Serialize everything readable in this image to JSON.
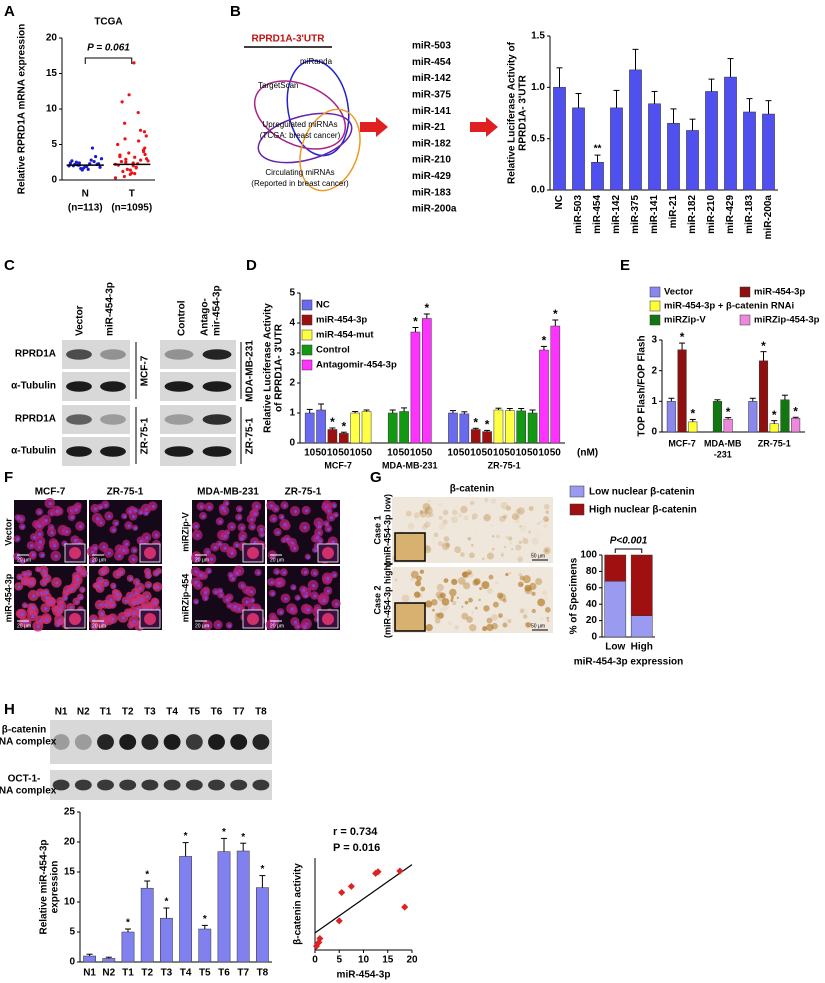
{
  "figure": {
    "panel_labels": [
      "A",
      "B",
      "C",
      "D",
      "E",
      "F",
      "G",
      "H"
    ],
    "venn": {
      "title": "RPRD1A-3'UTR",
      "sets": [
        "miRanda",
        "TargetScan"
      ],
      "upregulated": [
        "Upregulated miRNAs",
        "(TCGA: breast cancer)"
      ],
      "circulating": [
        "Circulating miRNAs",
        "(Reported in breast cancer)"
      ],
      "mirnas": [
        "miR-503",
        "miR-454",
        "miR-142",
        "miR-375",
        "miR-141",
        "miR-21",
        "miR-182",
        "miR-210",
        "miR-429",
        "miR-183",
        "miR-200a"
      ]
    },
    "blots_c": {
      "lanes_left": [
        "Vector",
        "miR-454-3p"
      ],
      "lanes_right": [
        "Control",
        "Antago-",
        "mir-454-3p"
      ],
      "rows": [
        "RPRD1A",
        "α-Tubulin",
        "RPRD1A",
        "α-Tubulin"
      ],
      "cell_lines": [
        "MCF-7",
        "MDA-MB-231",
        "ZR-75-1",
        "ZR-75-1"
      ]
    },
    "panel_f": {
      "columns": [
        "MCF-7",
        "ZR-75-1",
        "MDA-MB-231",
        "ZR-75-1"
      ],
      "rows_left": [
        "Vector",
        "miR-454-3p"
      ],
      "rows_right": [
        "miRZip-V",
        "miRZip-454"
      ],
      "scale_bar": "20 μm"
    },
    "panel_g": {
      "title": "β-catenin",
      "cases": [
        [
          "Case 1",
          "(miR-454-3p low)"
        ],
        [
          "Case 2",
          "(miR-454-3p high)"
        ]
      ],
      "scale_bar": "50 μm"
    },
    "panel_h_blot": {
      "lanes": [
        "N1",
        "N2",
        "T1",
        "T2",
        "T3",
        "T4",
        "T5",
        "T6",
        "T7",
        "T8"
      ],
      "rows": [
        [
          "β-catenin",
          "DNA complex"
        ],
        [
          "OCT-1-",
          "DNA complex"
        ]
      ]
    }
  },
  "chart_data": [
    {
      "type": "strip",
      "title": "TCGA",
      "categories": [
        "N",
        "T"
      ],
      "category_notes": [
        "(n=113)",
        "(n=1095)"
      ],
      "points": [
        [
          2.0,
          2.1,
          2.3,
          1.8,
          2.5,
          1.9,
          2.2,
          2.0,
          1.7,
          2.6,
          2.4,
          1.6,
          2.8,
          3.0,
          2.1,
          1.5,
          2.3,
          2.2,
          1.9,
          3.3,
          2.7,
          1.4,
          4.5,
          2.0,
          2.4
        ],
        [
          2.2,
          2.5,
          1.8,
          3.0,
          1.2,
          2.0,
          4.0,
          3.5,
          0.8,
          2.8,
          5.0,
          1.5,
          2.3,
          6.2,
          0.5,
          3.2,
          4.5,
          2.6,
          1.0,
          7.0,
          2.1,
          3.8,
          5.5,
          0.3,
          2.9,
          1.7,
          6.8,
          8.0,
          2.4,
          4.2,
          3.3,
          1.4,
          9.5,
          11.0,
          12.0,
          16.5,
          2.7,
          5.8,
          0.9,
          3.6
        ]
      ],
      "medians": [
        2.1,
        2.2
      ],
      "colors": [
        "#1a1acc",
        "#ee1111"
      ],
      "annotation": "P = 0.061",
      "ylabel": [
        "Relative RPRD1A mRNA expression"
      ],
      "ylim": [
        0,
        20
      ],
      "yticks": [
        0,
        5,
        10,
        15,
        20
      ]
    },
    {
      "type": "bar",
      "categories": [
        "NC",
        "miR-503",
        "miR-454",
        "miR-142",
        "miR-375",
        "miR-141",
        "miR-21",
        "miR-182",
        "miR-210",
        "miR-429",
        "miR-183",
        "miR-200a"
      ],
      "values": [
        1.0,
        0.8,
        0.27,
        0.8,
        1.17,
        0.84,
        0.65,
        0.58,
        0.96,
        1.1,
        0.76,
        0.74
      ],
      "errors": [
        0.19,
        0.14,
        0.07,
        0.17,
        0.2,
        0.12,
        0.14,
        0.11,
        0.12,
        0.18,
        0.13,
        0.13
      ],
      "annotations": [
        null,
        null,
        "**",
        null,
        null,
        null,
        null,
        null,
        null,
        null,
        null,
        null
      ],
      "color": "#5050ee",
      "ylabel": [
        "Relative Luciferase Activity of",
        "RPRD1A- 3'UTR"
      ],
      "ylim": [
        0,
        1.5
      ],
      "yticks": [
        {
          "value": 0,
          "label": "0.0"
        },
        0.5,
        {
          "value": 1,
          "label": "1.0"
        },
        1.5
      ]
    },
    {
      "type": "grouped_bar",
      "categories": [
        "10",
        "50",
        "10",
        "50",
        "10",
        "50",
        "10",
        "50",
        "10",
        "50",
        "10",
        "50",
        "10",
        "50",
        "10",
        "50",
        "10",
        "50",
        "10",
        "50"
      ],
      "groups": [
        [
          "MCF-7"
        ],
        [
          "MDA-MB-231"
        ],
        [
          "ZR-75-1"
        ]
      ],
      "group_sizes": [
        6,
        4,
        10
      ],
      "unit": "(nM)",
      "series": [
        {
          "name": "NC",
          "color": "#6a6aee",
          "values": [
            1.0,
            1.1,
            null,
            null,
            null,
            null,
            null,
            null,
            null,
            null,
            1.0,
            0.97,
            null,
            null,
            null,
            null,
            null,
            null,
            null,
            null
          ],
          "errors": [
            0.12,
            0.2,
            null,
            null,
            null,
            null,
            null,
            null,
            null,
            null,
            0.08,
            0.07,
            null,
            null,
            null,
            null,
            null,
            null,
            null,
            null
          ],
          "significance": [
            null,
            null,
            null,
            null,
            null,
            null,
            null,
            null,
            null,
            null,
            null,
            null,
            null,
            null,
            null,
            null,
            null,
            null,
            null,
            null
          ]
        },
        {
          "name": "miR-454-3p",
          "color": "#9c1010",
          "values": [
            null,
            null,
            0.45,
            0.32,
            null,
            null,
            null,
            null,
            null,
            null,
            null,
            null,
            0.45,
            0.38,
            null,
            null,
            null,
            null,
            null,
            null
          ],
          "errors": [
            null,
            null,
            0.05,
            0.04,
            null,
            null,
            null,
            null,
            null,
            null,
            null,
            null,
            0.04,
            0.04,
            null,
            null,
            null,
            null,
            null,
            null
          ],
          "significance": [
            null,
            null,
            "*",
            "*",
            null,
            null,
            null,
            null,
            null,
            null,
            null,
            null,
            "*",
            "*",
            null,
            null,
            null,
            null,
            null,
            null
          ]
        },
        {
          "name": "miR-454-mut",
          "color": "#ffff44",
          "values": [
            null,
            null,
            null,
            null,
            1.0,
            1.05,
            null,
            null,
            null,
            null,
            null,
            null,
            null,
            null,
            1.1,
            1.08,
            null,
            null,
            null,
            null
          ],
          "errors": [
            null,
            null,
            null,
            null,
            0.05,
            0.05,
            null,
            null,
            null,
            null,
            null,
            null,
            null,
            null,
            0.06,
            0.07,
            null,
            null,
            null,
            null
          ],
          "significance": [
            null,
            null,
            null,
            null,
            null,
            null,
            null,
            null,
            null,
            null,
            null,
            null,
            null,
            null,
            null,
            null,
            null,
            null,
            null,
            null
          ]
        },
        {
          "name": "Control",
          "color": "#119911",
          "values": [
            null,
            null,
            null,
            null,
            null,
            null,
            1.0,
            1.05,
            null,
            null,
            null,
            null,
            null,
            null,
            null,
            null,
            1.07,
            1.0,
            null,
            null
          ],
          "errors": [
            null,
            null,
            null,
            null,
            null,
            null,
            0.1,
            0.12,
            null,
            null,
            null,
            null,
            null,
            null,
            null,
            null,
            0.08,
            0.1,
            null,
            null
          ],
          "significance": [
            null,
            null,
            null,
            null,
            null,
            null,
            null,
            null,
            null,
            null,
            null,
            null,
            null,
            null,
            null,
            null,
            null,
            null,
            null,
            null
          ]
        },
        {
          "name": "Antagomir-454-3p",
          "color": "#ff33ff",
          "values": [
            null,
            null,
            null,
            null,
            null,
            null,
            null,
            null,
            3.7,
            4.15,
            null,
            null,
            null,
            null,
            null,
            null,
            null,
            null,
            3.1,
            3.9
          ],
          "errors": [
            null,
            null,
            null,
            null,
            null,
            null,
            null,
            null,
            0.15,
            0.15,
            null,
            null,
            null,
            null,
            null,
            null,
            null,
            null,
            0.12,
            0.2
          ],
          "significance": [
            null,
            null,
            null,
            null,
            null,
            null,
            null,
            null,
            "*",
            "*",
            null,
            null,
            null,
            null,
            null,
            null,
            null,
            null,
            "*",
            "*"
          ]
        }
      ],
      "ylabel": [
        "Relative Luciferase Activity",
        "of RPRD1A- 3'UTR"
      ],
      "ylim": [
        0,
        5
      ],
      "yticks": [
        0,
        1,
        2,
        3,
        4,
        5
      ]
    },
    {
      "type": "grouped_bar",
      "groups": [
        [
          "MCF-7"
        ],
        [
          "MDA-MB",
          "-231"
        ],
        [
          "ZR-75-1"
        ]
      ],
      "group_sizes": [
        3,
        2,
        5
      ],
      "series": [
        {
          "name": "Vector",
          "color": "#8888ee",
          "values": [
            1.0,
            null,
            null,
            null,
            null,
            1.0,
            null,
            null,
            null,
            null
          ],
          "errors": [
            0.1,
            null,
            null,
            null,
            null,
            0.1,
            null,
            null,
            null,
            null
          ],
          "significance": [
            null,
            null,
            null,
            null,
            null,
            null,
            null,
            null,
            null,
            null
          ]
        },
        {
          "name": "miR-454-3p",
          "color": "#8e1010",
          "values": [
            null,
            2.68,
            null,
            null,
            null,
            null,
            2.32,
            null,
            null,
            null
          ],
          "errors": [
            null,
            0.22,
            null,
            null,
            null,
            null,
            0.3,
            null,
            null,
            null
          ],
          "significance": [
            null,
            "*",
            null,
            null,
            null,
            null,
            "*",
            null,
            null,
            null
          ]
        },
        {
          "name": "miR-454-3p + β-catenin RNAi",
          "color": "#ffff33",
          "values": [
            null,
            null,
            0.33,
            null,
            null,
            null,
            null,
            0.27,
            null,
            null
          ],
          "errors": [
            null,
            null,
            0.08,
            null,
            null,
            null,
            null,
            0.1,
            null,
            null
          ],
          "significance": [
            null,
            null,
            "*",
            null,
            null,
            null,
            null,
            "*",
            null,
            null
          ]
        },
        {
          "name": "miRZip-V",
          "color": "#117711",
          "values": [
            null,
            null,
            null,
            1.0,
            null,
            null,
            null,
            null,
            1.05,
            null
          ],
          "errors": [
            null,
            null,
            null,
            0.05,
            null,
            null,
            null,
            null,
            0.15,
            null
          ],
          "significance": [
            null,
            null,
            null,
            null,
            null,
            null,
            null,
            null,
            null,
            null
          ]
        },
        {
          "name": "miRZip-454-3p",
          "color": "#ee88dd",
          "values": [
            null,
            null,
            null,
            null,
            0.42,
            null,
            null,
            null,
            null,
            0.45
          ],
          "errors": [
            null,
            null,
            null,
            null,
            0.05,
            null,
            null,
            null,
            null,
            0.03
          ],
          "significance": [
            null,
            null,
            null,
            null,
            "*",
            null,
            null,
            null,
            null,
            "*"
          ]
        }
      ],
      "ylabel": [
        "TOP Flash/FOP Flash"
      ],
      "ylim": [
        0,
        3
      ],
      "yticks": [
        0,
        1,
        2,
        3
      ]
    },
    {
      "type": "stacked_bar",
      "categories": [
        "Low",
        "High"
      ],
      "series": [
        {
          "name": "Low nuclear β-catenin",
          "color": "#9a9af0",
          "values": [
            68,
            26
          ]
        },
        {
          "name": "High nuclear β-catenin",
          "color": "#a01010",
          "values": [
            32,
            74
          ]
        }
      ],
      "annotation": "P<0.001",
      "xlabel": "miR-454-3p expression",
      "ylabel": [
        "% of Specimens"
      ],
      "ylim": [
        0,
        100
      ],
      "yticks": [
        0,
        20,
        40,
        60,
        80,
        100
      ]
    },
    {
      "type": "bar",
      "categories": [
        "N1",
        "N2",
        "T1",
        "T2",
        "T3",
        "T4",
        "T5",
        "T6",
        "T7",
        "T8"
      ],
      "values": [
        1.0,
        0.6,
        5.0,
        12.3,
        7.3,
        17.6,
        5.5,
        18.4,
        18.5,
        12.4
      ],
      "errors": [
        0.3,
        0.2,
        0.5,
        1.2,
        1.7,
        2.3,
        0.6,
        2.2,
        1.3,
        2.0
      ],
      "annotations": [
        null,
        null,
        "*",
        "*",
        "*",
        "*",
        "*",
        "*",
        "*",
        "*"
      ],
      "color": "#8080ee",
      "ylabel": [
        "Relative miR-454-3p",
        "expression"
      ],
      "ylim": [
        0,
        25
      ],
      "yticks": [
        0,
        5,
        10,
        15,
        20,
        25
      ]
    },
    {
      "type": "scatter",
      "x": [
        0.3,
        0.8,
        1.0,
        5.0,
        5.5,
        7.5,
        12.5,
        13.0,
        17.5,
        18.5
      ],
      "values": [
        0.5,
        1.0,
        1.5,
        3.8,
        7.5,
        8.3,
        10.0,
        10.2,
        10.3,
        5.6
      ],
      "color": "#dd2222",
      "annotations": [
        "r = 0.734",
        "P = 0.016"
      ],
      "xlabel": "miR-454-3p",
      "ylabel": [
        "β-catenin activity"
      ],
      "xlim": [
        0,
        20
      ],
      "xticks": [
        0,
        5,
        10,
        15,
        20
      ],
      "ylim": [
        0,
        12
      ]
    }
  ]
}
